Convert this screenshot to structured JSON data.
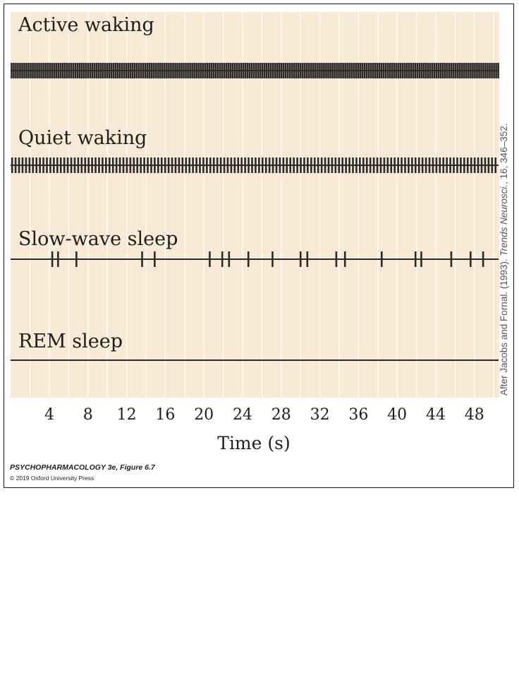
{
  "chart_data": {
    "type": "spike-raster",
    "xlabel": "Time (s)",
    "xlim": [
      0,
      51
    ],
    "xticks": [
      4,
      8,
      12,
      16,
      20,
      24,
      28,
      32,
      36,
      40,
      44,
      48
    ],
    "background": "#f9ead6",
    "gridline_color": "#ffffff",
    "trace_color": "#2a2a2a",
    "rows": [
      {
        "name": "Active waking",
        "spike_interval_s": 0.22,
        "spike_range": [
          0,
          50.9
        ]
      },
      {
        "name": "Quiet waking",
        "spike_interval_s": 0.36,
        "spike_range": [
          0,
          50.5
        ]
      },
      {
        "name": "Slow-wave sleep",
        "spikes": [
          4.3,
          4.9,
          6.8,
          13.6,
          14.9,
          20.6,
          21.9,
          22.6,
          24.6,
          27.1,
          30.0,
          30.7,
          33.7,
          34.6,
          38.4,
          41.9,
          42.5,
          45.6,
          47.6,
          48.9
        ]
      },
      {
        "name": "REM sleep",
        "spikes": []
      }
    ]
  },
  "credit": "After Jacobs and Fornal. (1993). Trends Neurosci., 16, 346–352.",
  "credit_parts": {
    "pre": "After Jacobs and Fornal. (1993). ",
    "journal": "Trends Neurosci.",
    "post": ", 16, 346–352."
  },
  "footer": {
    "book": "PSYCHOPHARMACOLOGY 3e, Figure 6.7",
    "copyright": "© 2019 Oxford University Press"
  }
}
